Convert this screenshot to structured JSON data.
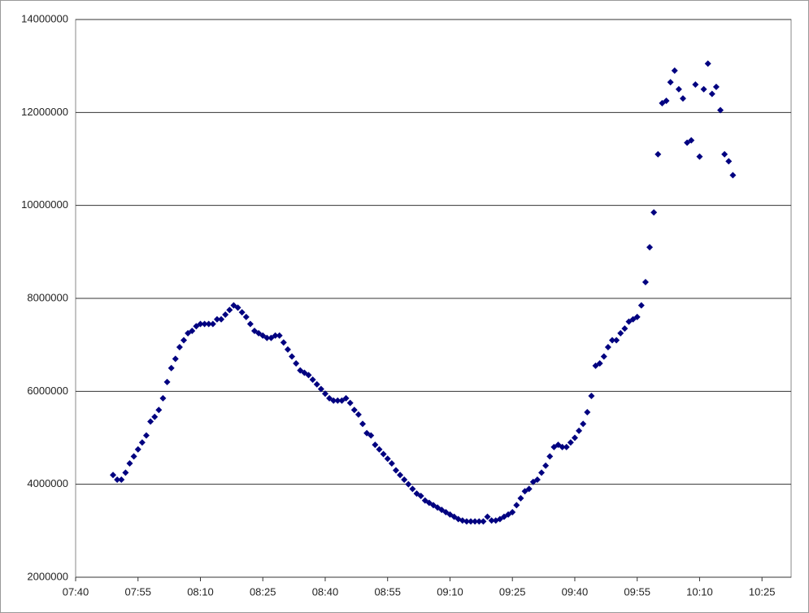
{
  "chart_data": {
    "type": "scatter",
    "color": "#000080",
    "grid": true,
    "xlim": [
      460,
      632
    ],
    "ylim": [
      2000000,
      14000000
    ],
    "xticks": [
      {
        "value": 460,
        "label": "07:40"
      },
      {
        "value": 475,
        "label": "07:55"
      },
      {
        "value": 490,
        "label": "08:10"
      },
      {
        "value": 505,
        "label": "08:25"
      },
      {
        "value": 520,
        "label": "08:40"
      },
      {
        "value": 535,
        "label": "08:55"
      },
      {
        "value": 550,
        "label": "09:10"
      },
      {
        "value": 565,
        "label": "09:25"
      },
      {
        "value": 580,
        "label": "09:40"
      },
      {
        "value": 595,
        "label": "09:55"
      },
      {
        "value": 610,
        "label": "10:10"
      },
      {
        "value": 625,
        "label": "10:25"
      }
    ],
    "yticks": [
      2000000,
      4000000,
      6000000,
      8000000,
      10000000,
      12000000,
      14000000
    ],
    "x": [
      469,
      470,
      471,
      472,
      473,
      474,
      475,
      476,
      477,
      478,
      479,
      480,
      481,
      482,
      483,
      484,
      485,
      486,
      487,
      488,
      489,
      490,
      491,
      492,
      493,
      494,
      495,
      496,
      497,
      498,
      499,
      500,
      501,
      502,
      503,
      504,
      505,
      506,
      507,
      508,
      509,
      510,
      511,
      512,
      513,
      514,
      515,
      516,
      517,
      518,
      519,
      520,
      521,
      522,
      523,
      524,
      525,
      526,
      527,
      528,
      529,
      530,
      531,
      532,
      533,
      534,
      535,
      536,
      537,
      538,
      539,
      540,
      541,
      542,
      543,
      544,
      545,
      546,
      547,
      548,
      549,
      550,
      551,
      552,
      553,
      554,
      555,
      556,
      557,
      558,
      559,
      560,
      561,
      562,
      563,
      564,
      565,
      566,
      567,
      568,
      569,
      570,
      571,
      572,
      573,
      574,
      575,
      576,
      577,
      578,
      579,
      580,
      581,
      582,
      583,
      584,
      585,
      586,
      587,
      588,
      589,
      590,
      591,
      592,
      593,
      594,
      595,
      596,
      597,
      598,
      599,
      600,
      601,
      602,
      603,
      604,
      605,
      606,
      607,
      608,
      609,
      610,
      611,
      612,
      613,
      614,
      615,
      616,
      617,
      618
    ],
    "values": [
      4200000,
      4100000,
      4100000,
      4250000,
      4450000,
      4600000,
      4750000,
      4900000,
      5050000,
      5350000,
      5450000,
      5600000,
      5850000,
      6200000,
      6500000,
      6700000,
      6950000,
      7100000,
      7250000,
      7300000,
      7400000,
      7450000,
      7450000,
      7450000,
      7450000,
      7550000,
      7550000,
      7650000,
      7750000,
      7850000,
      7800000,
      7700000,
      7600000,
      7450000,
      7300000,
      7250000,
      7200000,
      7150000,
      7150000,
      7200000,
      7200000,
      7050000,
      6900000,
      6750000,
      6600000,
      6450000,
      6400000,
      6350000,
      6250000,
      6150000,
      6050000,
      5950000,
      5850000,
      5800000,
      5800000,
      5800000,
      5850000,
      5750000,
      5600000,
      5500000,
      5300000,
      5100000,
      5050000,
      4850000,
      4750000,
      4650000,
      4550000,
      4450000,
      4300000,
      4200000,
      4100000,
      4000000,
      3900000,
      3800000,
      3750000,
      3650000,
      3600000,
      3550000,
      3500000,
      3450000,
      3400000,
      3350000,
      3300000,
      3250000,
      3220000,
      3200000,
      3200000,
      3200000,
      3200000,
      3200000,
      3300000,
      3220000,
      3220000,
      3250000,
      3300000,
      3350000,
      3400000,
      3550000,
      3700000,
      3850000,
      3900000,
      4050000,
      4100000,
      4250000,
      4400000,
      4600000,
      4800000,
      4850000,
      4800000,
      4800000,
      4900000,
      5000000,
      5150000,
      5300000,
      5550000,
      5900000,
      6550000,
      6600000,
      6750000,
      6950000,
      7100000,
      7100000,
      7250000,
      7350000,
      7500000,
      7550000,
      7600000,
      7850000,
      8350000,
      9100000,
      9850000,
      11100000,
      12200000,
      12250000,
      12650000,
      12900000,
      12500000,
      12300000,
      11350000,
      11400000,
      12600000,
      11050000,
      12500000,
      13050000,
      12400000,
      12550000,
      12050000,
      11100000,
      10950000,
      10650000
    ]
  }
}
